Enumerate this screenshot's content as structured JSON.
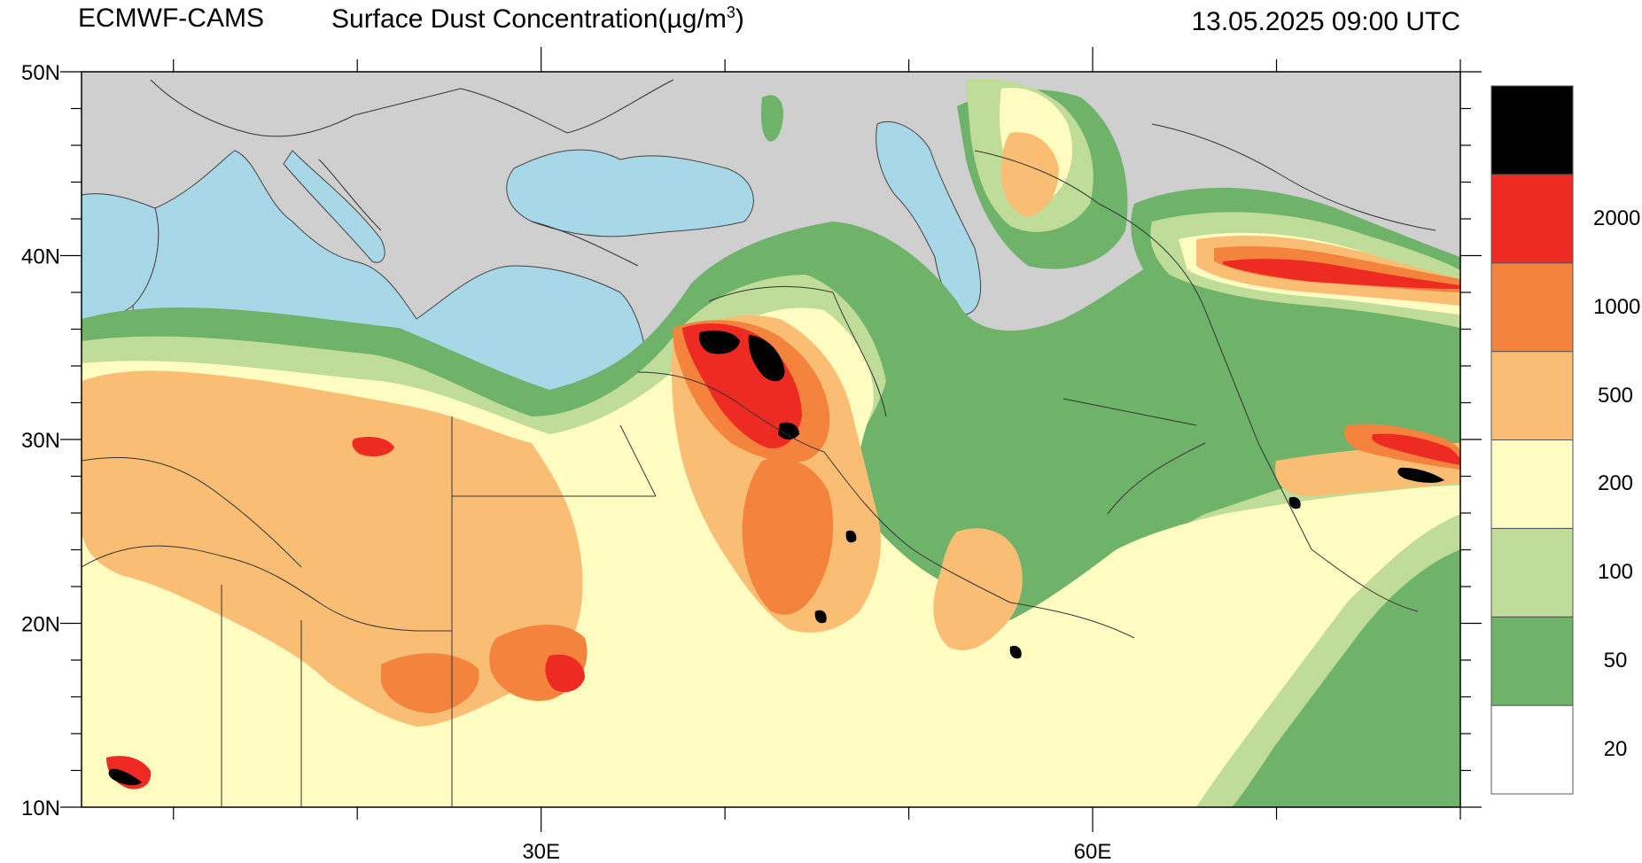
{
  "header": {
    "agency": "ECMWF-CAMS",
    "product_prefix": "Surface Dust Concentration(µg/m",
    "product_superscript": "3",
    "product_suffix": ")",
    "datetime": "13.05.2025 09:00 UTC"
  },
  "map": {
    "extent": {
      "lon_min": 5,
      "lon_max": 80,
      "lat_min": 10,
      "lat_max": 50
    },
    "lat_ticks": [
      {
        "label": "50N",
        "lat": 50
      },
      {
        "label": "40N",
        "lat": 40
      },
      {
        "label": "30N",
        "lat": 30
      },
      {
        "label": "20N",
        "lat": 20
      },
      {
        "label": "10N",
        "lat": 10
      }
    ],
    "lon_ticks": [
      {
        "label": "30E",
        "lon": 30
      },
      {
        "label": "60E",
        "lon": 60
      }
    ],
    "colors": {
      "land": "#cfcfcf",
      "water": "#a8d8e8",
      "border": "#333333"
    }
  },
  "colorbar": {
    "levels": [
      {
        "color": "#ffffff",
        "label": "20"
      },
      {
        "color": "#6fb36a",
        "label": "50"
      },
      {
        "color": "#bfdc98",
        "label": "100"
      },
      {
        "color": "#fffcc2",
        "label": "200"
      },
      {
        "color": "#f9bd73",
        "label": "500"
      },
      {
        "color": "#f4833e",
        "label": "1000"
      },
      {
        "color": "#ee2b22",
        "label": "2000"
      },
      {
        "color": "#000000",
        "label": ""
      }
    ]
  }
}
